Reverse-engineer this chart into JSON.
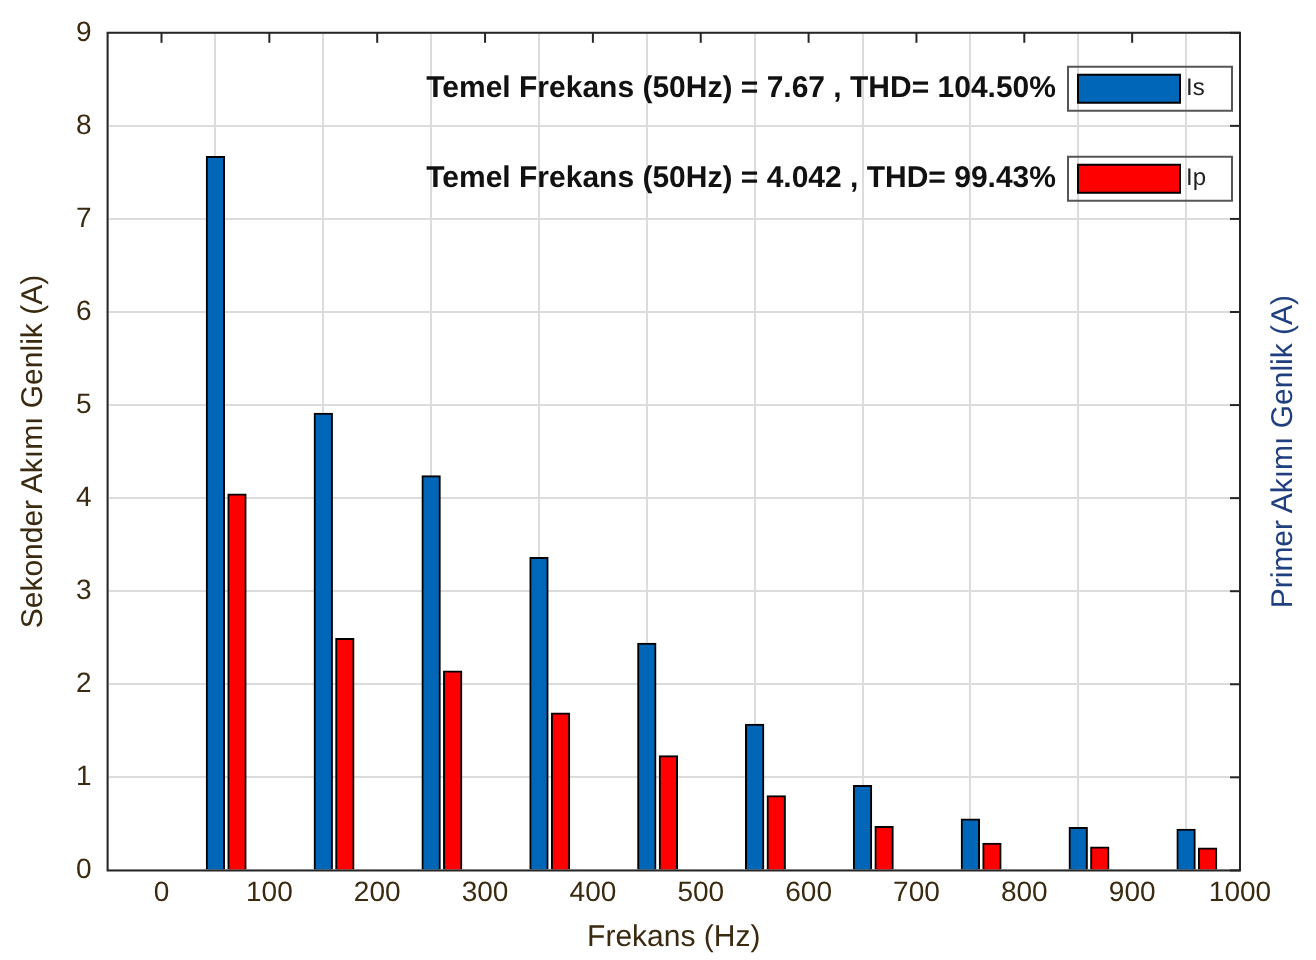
{
  "chart_data": {
    "type": "bar",
    "xlabel": "Frekans (Hz)",
    "ylabel": "Sekonder Akımı Genlik (A)",
    "y2label": "Primer Akımı Genlik (A)",
    "xlim": [
      -50,
      1000
    ],
    "xticks": [
      0,
      100,
      200,
      300,
      400,
      500,
      600,
      700,
      800,
      900,
      1000
    ],
    "ylim": [
      0,
      9
    ],
    "yticks": [
      0,
      1,
      2,
      3,
      4,
      5,
      6,
      7,
      8,
      9
    ],
    "series": [
      {
        "name": "Is",
        "color": "#0066b8",
        "x": [
          50,
          150,
          250,
          350,
          450,
          550,
          650,
          750,
          850,
          950
        ],
        "values": [
          7.67,
          4.91,
          4.24,
          3.36,
          2.44,
          1.57,
          0.91,
          0.55,
          0.46,
          0.44
        ]
      },
      {
        "name": "Ip",
        "color": "#ff0000",
        "x": [
          70,
          170,
          270,
          370,
          470,
          570,
          670,
          770,
          870,
          970
        ],
        "values": [
          4.042,
          2.49,
          2.14,
          1.69,
          1.23,
          0.8,
          0.47,
          0.29,
          0.25,
          0.24
        ]
      }
    ],
    "annotations": [
      "Temel Frekans (50Hz) = 7.67 , THD= 104.50%",
      "Temel Frekans (50Hz) = 4.042 , THD= 99.43%"
    ],
    "grid": true,
    "legend": "top right"
  }
}
